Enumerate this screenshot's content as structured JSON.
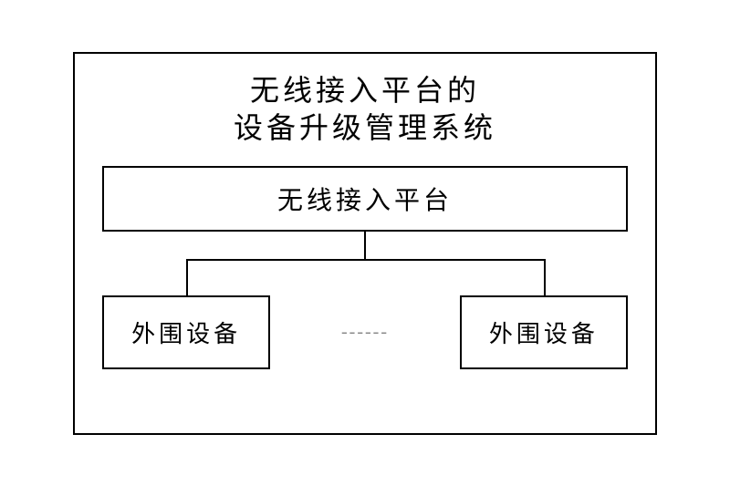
{
  "diagram": {
    "type": "flowchart",
    "title_line1": "无线接入平台的",
    "title_line2": "设备升级管理系统",
    "platform_label": "无线接入平台",
    "device_left_label": "外围设备",
    "device_right_label": "外围设备",
    "ellipsis_text": "------",
    "border_color": "#000000",
    "background_color": "#ffffff",
    "title_fontsize": 32,
    "box_fontsize": 28,
    "device_fontsize": 26,
    "font_family": "KaiTi",
    "line_width": 2,
    "ellipsis_color": "#888888"
  }
}
